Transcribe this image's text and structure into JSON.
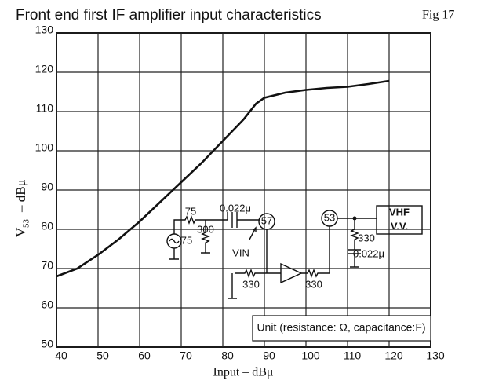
{
  "chart_data": {
    "type": "line",
    "title": "Front end first IF amplifier input characteristics",
    "figure_label": "Fig 17",
    "xlabel": "Input – dBμ",
    "ylabel": "V",
    "ylabel_sub": "53",
    "ylabel_unit": "–   dBμ",
    "x": [
      40,
      45,
      50,
      55,
      60,
      65,
      70,
      75,
      80,
      85,
      88,
      90,
      95,
      100,
      105,
      110,
      115,
      120
    ],
    "series": [
      {
        "name": "V53",
        "color": "#111111",
        "values": [
          68,
          70,
          73.5,
          77.5,
          82,
          87,
          92,
          97,
          102.5,
          108,
          112,
          113.5,
          114.8,
          115.5,
          116,
          116.3,
          117,
          117.8
        ]
      }
    ],
    "xlim": [
      40,
      130
    ],
    "xticks": [
      40,
      50,
      60,
      70,
      80,
      90,
      100,
      110,
      120,
      130
    ],
    "ylim": [
      50,
      130
    ],
    "yticks": [
      50,
      60,
      70,
      80,
      90,
      100,
      110,
      120,
      130
    ],
    "grid": true,
    "circuit": {
      "labels": [
        "75",
        "75",
        "300",
        "0.022μ",
        "57",
        "53",
        "VHF",
        "V.V.",
        "VIN",
        "330",
        "330",
        "330",
        "0.022μ"
      ],
      "unit_note": "Unit (resistance: Ω, capacitance:F)"
    }
  }
}
